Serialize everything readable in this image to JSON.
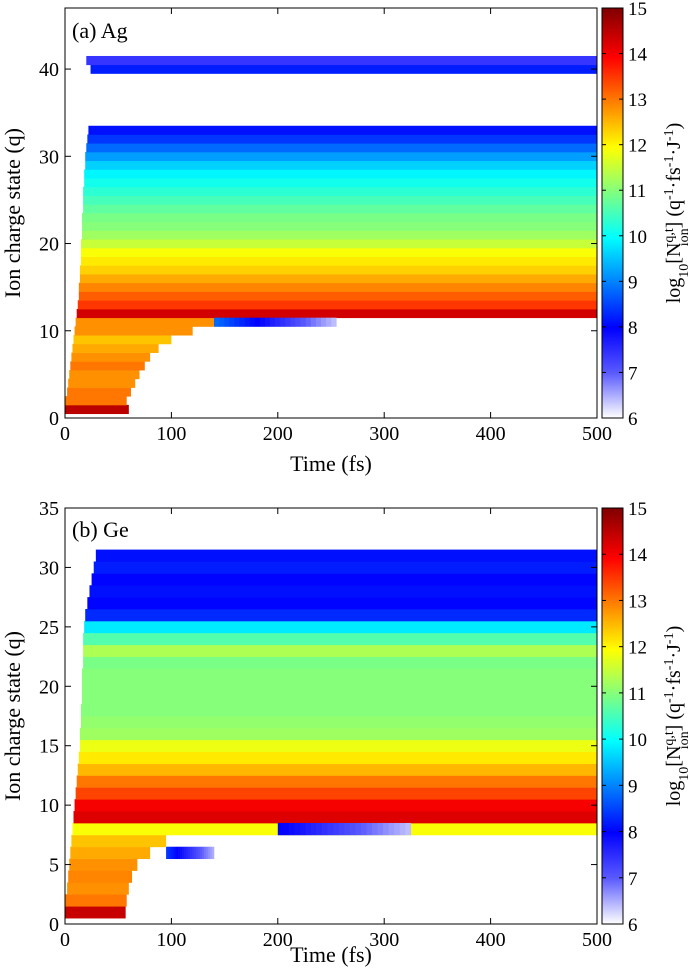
{
  "figure": {
    "xlabel": "Time (fs)",
    "ylabel": "Ion charge state (q)",
    "colorbar": {
      "label_main": "log",
      "label_sub": "10",
      "label_bracket_open": "[N",
      "label_sup": "q,t",
      "label_ion": "ion",
      "label_unit": "] (q",
      "label_rest": "·fs",
      "label_rest2": "·J",
      "label_end": ")",
      "ticks": [
        "6",
        "7",
        "8",
        "9",
        "10",
        "11",
        "12",
        "13",
        "14",
        "15"
      ],
      "range": [
        6,
        15
      ],
      "colormap": "jet"
    }
  },
  "chart_data": [
    {
      "type": "heatmap",
      "panel_label": "(a) Ag",
      "xlabel": "Time (fs)",
      "ylabel": "Ion charge state (q)",
      "xlim": [
        0,
        500
      ],
      "ylim": [
        0,
        47
      ],
      "xticks": [
        "0",
        "100",
        "200",
        "300",
        "400",
        "500"
      ],
      "yticks": [
        "0",
        "10",
        "20",
        "30",
        "40"
      ],
      "colorbar_range": [
        6,
        15
      ],
      "rows": [
        {
          "q": 1,
          "start": 0,
          "end": 60,
          "value": 14.5
        },
        {
          "q": 2,
          "start": 0,
          "end": 58,
          "value": 13.0
        },
        {
          "q": 3,
          "start": 2,
          "end": 62,
          "value": 13.0
        },
        {
          "q": 4,
          "start": 3,
          "end": 66,
          "value": 12.8
        },
        {
          "q": 5,
          "start": 4,
          "end": 70,
          "value": 12.8
        },
        {
          "q": 6,
          "start": 5,
          "end": 75,
          "value": 13.0
        },
        {
          "q": 7,
          "start": 6,
          "end": 80,
          "value": 12.8
        },
        {
          "q": 8,
          "start": 7,
          "end": 88,
          "value": 12.6
        },
        {
          "q": 9,
          "start": 8,
          "end": 100,
          "value": 12.4
        },
        {
          "q": 10,
          "start": 9,
          "end": 120,
          "value": 12.8
        },
        {
          "q": 11,
          "start": 10,
          "end": 140,
          "value": 12.8
        },
        {
          "q": 12,
          "start": 11,
          "end": 500,
          "value": 14.3
        },
        {
          "q": 13,
          "start": 12,
          "end": 500,
          "value": 13.5
        },
        {
          "q": 14,
          "start": 13,
          "end": 500,
          "value": 13.2
        },
        {
          "q": 15,
          "start": 13,
          "end": 500,
          "value": 12.9
        },
        {
          "q": 16,
          "start": 14,
          "end": 500,
          "value": 12.6
        },
        {
          "q": 17,
          "start": 14,
          "end": 500,
          "value": 12.3
        },
        {
          "q": 18,
          "start": 15,
          "end": 500,
          "value": 12.1
        },
        {
          "q": 19,
          "start": 15,
          "end": 500,
          "value": 11.9
        },
        {
          "q": 20,
          "start": 15,
          "end": 500,
          "value": 11.5
        },
        {
          "q": 21,
          "start": 16,
          "end": 500,
          "value": 11.2
        },
        {
          "q": 22,
          "start": 16,
          "end": 500,
          "value": 11.0
        },
        {
          "q": 23,
          "start": 16,
          "end": 500,
          "value": 10.9
        },
        {
          "q": 24,
          "start": 17,
          "end": 500,
          "value": 10.7
        },
        {
          "q": 25,
          "start": 17,
          "end": 500,
          "value": 10.5
        },
        {
          "q": 26,
          "start": 17,
          "end": 500,
          "value": 10.3
        },
        {
          "q": 27,
          "start": 18,
          "end": 500,
          "value": 10.1
        },
        {
          "q": 28,
          "start": 18,
          "end": 500,
          "value": 9.9
        },
        {
          "q": 29,
          "start": 19,
          "end": 500,
          "value": 9.6
        },
        {
          "q": 30,
          "start": 19,
          "end": 500,
          "value": 9.2
        },
        {
          "q": 31,
          "start": 20,
          "end": 500,
          "value": 8.8
        },
        {
          "q": 32,
          "start": 21,
          "end": 500,
          "value": 8.4
        },
        {
          "q": 33,
          "start": 22,
          "end": 500,
          "value": 8.1
        },
        {
          "q": 40,
          "start": 24,
          "end": 500,
          "value": 8.2
        },
        {
          "q": 41,
          "start": 20,
          "end": 500,
          "value": 7.4
        }
      ],
      "tail": {
        "q": 11,
        "start": 140,
        "end": 255,
        "values_from": 8.8,
        "values_to": 6.4
      }
    },
    {
      "type": "heatmap",
      "panel_label": "(b) Ge",
      "xlabel": "Time (fs)",
      "ylabel": "Ion charge state (q)",
      "xlim": [
        0,
        500
      ],
      "ylim": [
        0,
        35
      ],
      "xticks": [
        "0",
        "100",
        "200",
        "300",
        "400",
        "500"
      ],
      "yticks": [
        "0",
        "5",
        "10",
        "15",
        "20",
        "25",
        "30",
        "35"
      ],
      "colorbar_range": [
        6,
        15
      ],
      "rows": [
        {
          "q": 1,
          "start": 0,
          "end": 57,
          "value": 14.4
        },
        {
          "q": 2,
          "start": 0,
          "end": 58,
          "value": 13.0
        },
        {
          "q": 3,
          "start": 2,
          "end": 60,
          "value": 12.8
        },
        {
          "q": 4,
          "start": 3,
          "end": 63,
          "value": 12.9
        },
        {
          "q": 5,
          "start": 4,
          "end": 68,
          "value": 12.8
        },
        {
          "q": 6,
          "start": 5,
          "end": 80,
          "value": 12.6
        },
        {
          "q": 7,
          "start": 6,
          "end": 95,
          "value": 12.4
        },
        {
          "q": 8,
          "start": 7,
          "end": 500,
          "value": 11.9
        },
        {
          "q": 9,
          "start": 8,
          "end": 500,
          "value": 14.2
        },
        {
          "q": 10,
          "start": 9,
          "end": 500,
          "value": 14.0
        },
        {
          "q": 11,
          "start": 10,
          "end": 500,
          "value": 13.4
        },
        {
          "q": 12,
          "start": 11,
          "end": 500,
          "value": 13.0
        },
        {
          "q": 13,
          "start": 12,
          "end": 500,
          "value": 12.5
        },
        {
          "q": 14,
          "start": 13,
          "end": 500,
          "value": 12.1
        },
        {
          "q": 15,
          "start": 14,
          "end": 500,
          "value": 11.8
        },
        {
          "q": 16,
          "start": 14,
          "end": 500,
          "value": 11.2
        },
        {
          "q": 17,
          "start": 15,
          "end": 500,
          "value": 11.1
        },
        {
          "q": 18,
          "start": 15,
          "end": 500,
          "value": 11.0
        },
        {
          "q": 19,
          "start": 16,
          "end": 500,
          "value": 11.0
        },
        {
          "q": 20,
          "start": 16,
          "end": 500,
          "value": 11.0
        },
        {
          "q": 21,
          "start": 16,
          "end": 500,
          "value": 11.0
        },
        {
          "q": 22,
          "start": 17,
          "end": 500,
          "value": 10.9
        },
        {
          "q": 23,
          "start": 17,
          "end": 500,
          "value": 11.3
        },
        {
          "q": 24,
          "start": 17,
          "end": 500,
          "value": 10.6
        },
        {
          "q": 25,
          "start": 18,
          "end": 500,
          "value": 9.8
        },
        {
          "q": 26,
          "start": 19,
          "end": 500,
          "value": 8.3
        },
        {
          "q": 27,
          "start": 21,
          "end": 500,
          "value": 8.0
        },
        {
          "q": 28,
          "start": 23,
          "end": 500,
          "value": 8.1
        },
        {
          "q": 29,
          "start": 25,
          "end": 500,
          "value": 8.0
        },
        {
          "q": 30,
          "start": 27,
          "end": 500,
          "value": 8.2
        },
        {
          "q": 31,
          "start": 29,
          "end": 500,
          "value": 8.1
        }
      ],
      "tail": {
        "q": 6,
        "start": 95,
        "end": 140,
        "values_from": 8.4,
        "values_to": 6.5
      },
      "tail2": {
        "q": 8,
        "start": 200,
        "end": 325,
        "values_from": 8.0,
        "values_to": 6.4
      }
    }
  ]
}
